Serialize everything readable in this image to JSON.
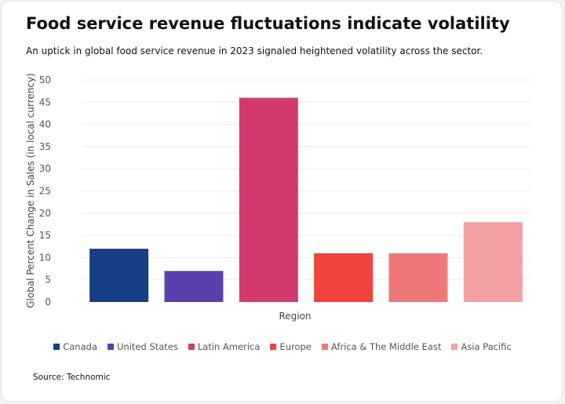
{
  "chart_data": {
    "type": "bar",
    "title": "Food service revenue fluctuations indicate volatility",
    "subtitle": "An uptick in global food service revenue in 2023 signaled heightened volatility across the sector.",
    "xlabel": "Region",
    "ylabel": "Global Percent Change in Sales (in local currency)",
    "ylim": [
      0,
      50
    ],
    "yticks": [
      0,
      5,
      10,
      15,
      20,
      25,
      30,
      35,
      40,
      45,
      50
    ],
    "categories": [
      "Canada",
      "United States",
      "Latin America",
      "Europe",
      "Africa & The Middle East",
      "Asia Pacific"
    ],
    "values": [
      12,
      7,
      46,
      11,
      11,
      18
    ],
    "colors": [
      "#173f86",
      "#5b40ad",
      "#d23a70",
      "#f2433d",
      "#ee7878",
      "#f2a0a2"
    ],
    "grid": true,
    "legend_position": "bottom-center",
    "source": "Source: Technomic"
  }
}
